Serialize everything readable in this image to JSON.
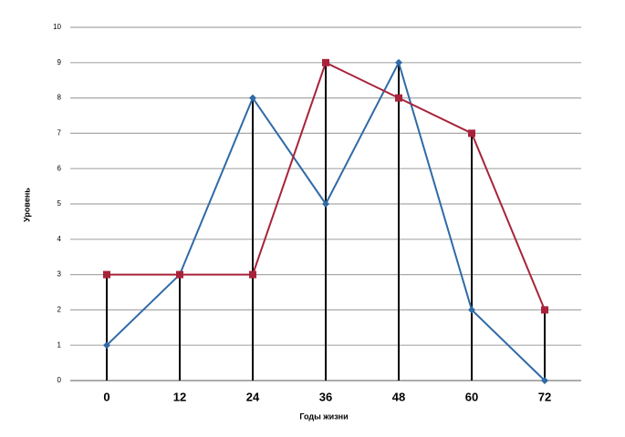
{
  "chart_data": {
    "type": "line",
    "x_label": "Годы жизни",
    "y_label": "Уровень",
    "categories": [
      "0",
      "12",
      "24",
      "36",
      "48",
      "60",
      "72"
    ],
    "series": [
      {
        "color": "#2f6aa6",
        "marker": "diamond",
        "values": [
          1,
          3,
          8,
          5,
          9,
          2,
          0
        ]
      },
      {
        "color": "#a8233a",
        "marker": "square",
        "values": [
          3,
          3,
          3,
          9,
          8,
          7,
          2
        ]
      }
    ],
    "ylim": [
      0,
      10
    ],
    "yticks": [
      0,
      1,
      2,
      3,
      4,
      5,
      6,
      7,
      8,
      9,
      10
    ],
    "grid": true,
    "drop_lines": true
  }
}
